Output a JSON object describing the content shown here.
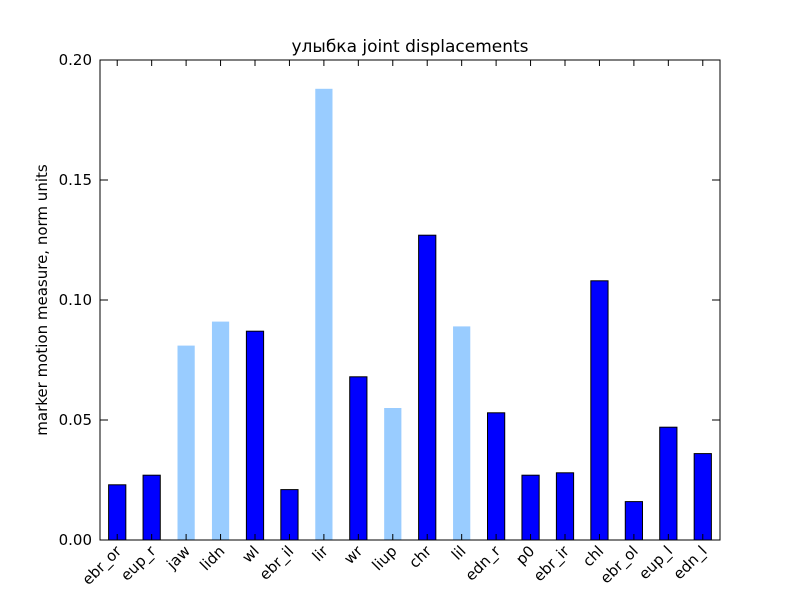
{
  "chart_data": {
    "type": "bar",
    "title": "улыбка joint displacements",
    "xlabel": "",
    "ylabel": "marker motion measure,  norm units",
    "ylim": [
      0,
      0.2
    ],
    "yticks": [
      "0.00",
      "0.05",
      "0.10",
      "0.15",
      "0.20"
    ],
    "grid": false,
    "colors": {
      "primary": "#0000ff",
      "light": "#99ccff",
      "edge": "#000000"
    },
    "categories": [
      "ebr_or",
      "eup_r",
      "jaw",
      "lidn",
      "wl",
      "ebr_il",
      "lir",
      "wr",
      "liup",
      "chr",
      "lil",
      "edn_r",
      "p0",
      "ebr_ir",
      "chl",
      "ebr_ol",
      "eup_l",
      "edn_l"
    ],
    "values": [
      0.023,
      0.027,
      0.081,
      0.091,
      0.087,
      0.021,
      0.188,
      0.068,
      0.055,
      0.127,
      0.089,
      0.053,
      0.027,
      0.028,
      0.108,
      0.016,
      0.047,
      0.036
    ],
    "highlight": [
      "primary",
      "primary",
      "light",
      "light",
      "primary",
      "primary",
      "light",
      "primary",
      "light",
      "primary",
      "light",
      "primary",
      "primary",
      "primary",
      "primary",
      "primary",
      "primary",
      "primary"
    ]
  }
}
